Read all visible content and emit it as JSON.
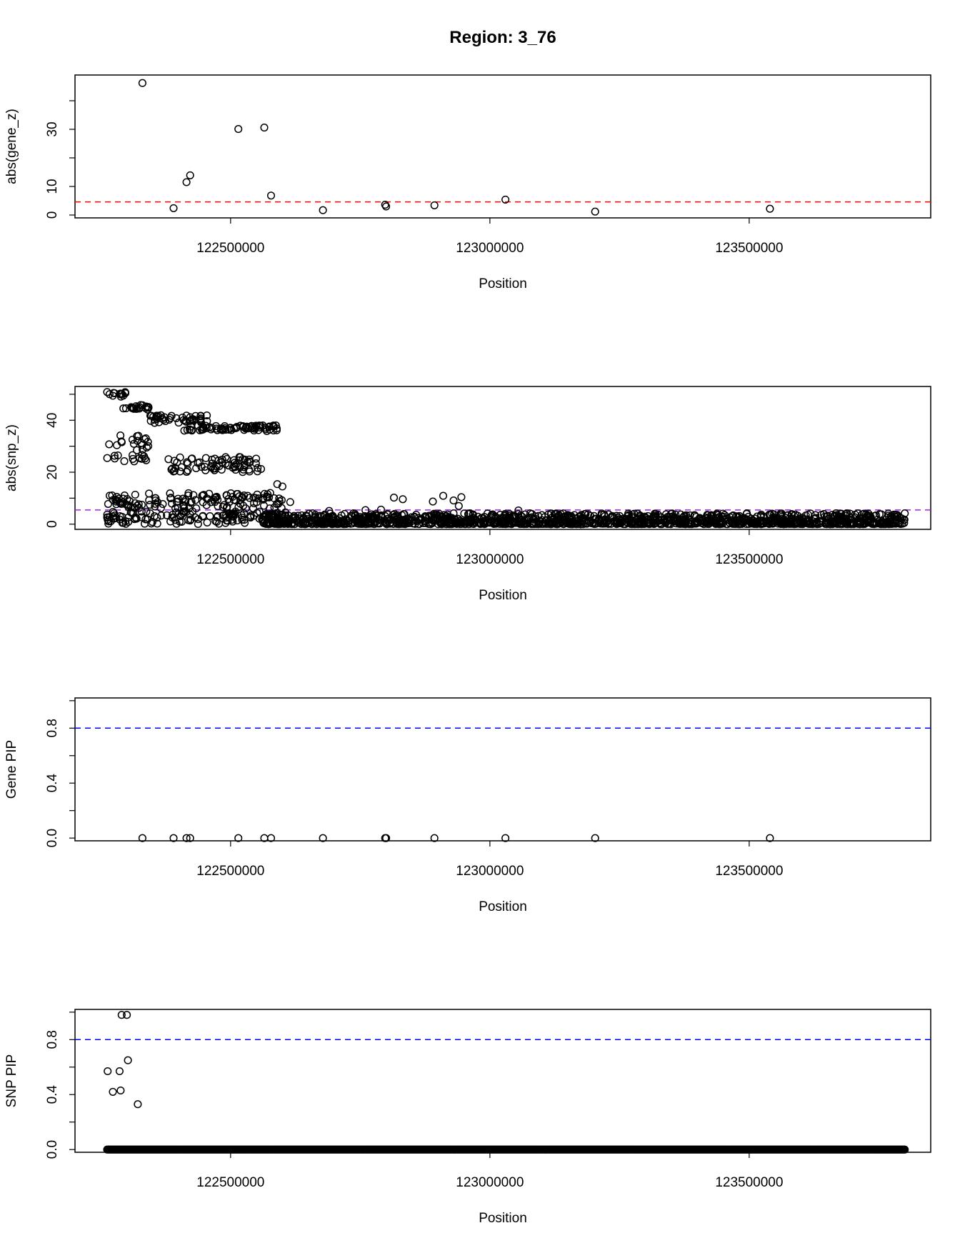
{
  "title": "Region: 3_76",
  "chart_data": [
    {
      "type": "scatter",
      "xlabel": "Position",
      "ylabel": "abs(gene_z)",
      "xlim": [
        122200000,
        123850000
      ],
      "ylim": [
        -1,
        49
      ],
      "xticks": [
        122500000,
        123000000,
        123500000
      ],
      "yticks": [
        0,
        10,
        20,
        30,
        40
      ],
      "ytick_labels": [
        "0",
        "10",
        "",
        "30",
        ""
      ],
      "threshold": {
        "value": 4.6,
        "color": "#ff0000"
      },
      "series": [
        {
          "points": [
            [
              122330000,
              46.2
            ],
            [
              122390000,
              2.4
            ],
            [
              122415000,
              11.5
            ],
            [
              122422000,
              13.9
            ],
            [
              122515000,
              30.1
            ],
            [
              122565000,
              30.6
            ],
            [
              122578000,
              6.8
            ],
            [
              122678000,
              1.7
            ],
            [
              122798000,
              3.6
            ],
            [
              122800000,
              3.0
            ],
            [
              122893000,
              3.4
            ],
            [
              123030000,
              5.4
            ],
            [
              123203000,
              1.2
            ],
            [
              123540000,
              2.2
            ]
          ]
        }
      ]
    },
    {
      "type": "scatter",
      "xlabel": "Position",
      "ylabel": "abs(snp_z)",
      "xlim": [
        122200000,
        123850000
      ],
      "ylim": [
        -2,
        53
      ],
      "xticks": [
        122500000,
        123000000,
        123500000
      ],
      "yticks": [
        0,
        10,
        20,
        30,
        40,
        50
      ],
      "ytick_labels": [
        "0",
        "",
        "20",
        "",
        "40",
        ""
      ],
      "threshold": {
        "value": 5.45,
        "color": "#a020f0"
      },
      "n_points": 3500,
      "x_range": [
        122262000,
        123800000
      ],
      "note_bands": [
        {
          "x": [
            122262000,
            122300000
          ],
          "y": [
            49,
            51
          ]
        },
        {
          "x": [
            122290000,
            122345000
          ],
          "y": [
            44,
            46
          ]
        },
        {
          "x": [
            122345000,
            122455000
          ],
          "y": [
            39,
            42
          ]
        },
        {
          "x": [
            122410000,
            122590000
          ],
          "y": [
            36,
            38
          ]
        },
        {
          "x": [
            122262000,
            122345000
          ],
          "y": [
            24,
            35
          ]
        },
        {
          "x": [
            122380000,
            122560000
          ],
          "y": [
            20,
            26
          ]
        },
        {
          "x": [
            122262000,
            122600000
          ],
          "y": [
            6,
            12
          ]
        },
        {
          "x": [
            122262000,
            122620000
          ],
          "y": [
            0,
            5
          ]
        }
      ]
    },
    {
      "type": "scatter",
      "xlabel": "Position",
      "ylabel": "Gene PIP",
      "xlim": [
        122200000,
        123850000
      ],
      "ylim": [
        -0.02,
        1.02
      ],
      "xticks": [
        122500000,
        123000000,
        123500000
      ],
      "yticks": [
        0.0,
        0.2,
        0.4,
        0.6,
        0.8,
        1.0
      ],
      "ytick_labels": [
        "0.0",
        "",
        "0.4",
        "",
        "0.8",
        ""
      ],
      "threshold": {
        "value": 0.8,
        "color": "#0000ff"
      },
      "series": [
        {
          "points": [
            [
              122330000,
              0
            ],
            [
              122390000,
              0
            ],
            [
              122415000,
              0
            ],
            [
              122422000,
              0
            ],
            [
              122515000,
              0
            ],
            [
              122565000,
              0
            ],
            [
              122578000,
              0
            ],
            [
              122678000,
              0
            ],
            [
              122798000,
              0
            ],
            [
              122800000,
              0
            ],
            [
              122893000,
              0
            ],
            [
              123030000,
              0
            ],
            [
              123203000,
              0
            ],
            [
              123540000,
              0
            ]
          ]
        }
      ]
    },
    {
      "type": "scatter",
      "xlabel": "Position",
      "ylabel": "SNP PIP",
      "xlim": [
        122200000,
        123850000
      ],
      "ylim": [
        -0.02,
        1.02
      ],
      "xticks": [
        122500000,
        123000000,
        123500000
      ],
      "yticks": [
        0.0,
        0.2,
        0.4,
        0.6,
        0.8,
        1.0
      ],
      "ytick_labels": [
        "0.0",
        "",
        "0.4",
        "",
        "0.8",
        ""
      ],
      "threshold": {
        "value": 0.8,
        "color": "#0000ff"
      },
      "highlight_points": [
        [
          122263000,
          0.57
        ],
        [
          122273000,
          0.42
        ],
        [
          122286000,
          0.57
        ],
        [
          122288000,
          0.43
        ],
        [
          122290000,
          0.98
        ],
        [
          122300000,
          0.98
        ],
        [
          122302000,
          0.65
        ],
        [
          122321000,
          0.33
        ]
      ],
      "baseline_x_range": [
        122262000,
        123800000
      ],
      "baseline_value": 0
    }
  ]
}
